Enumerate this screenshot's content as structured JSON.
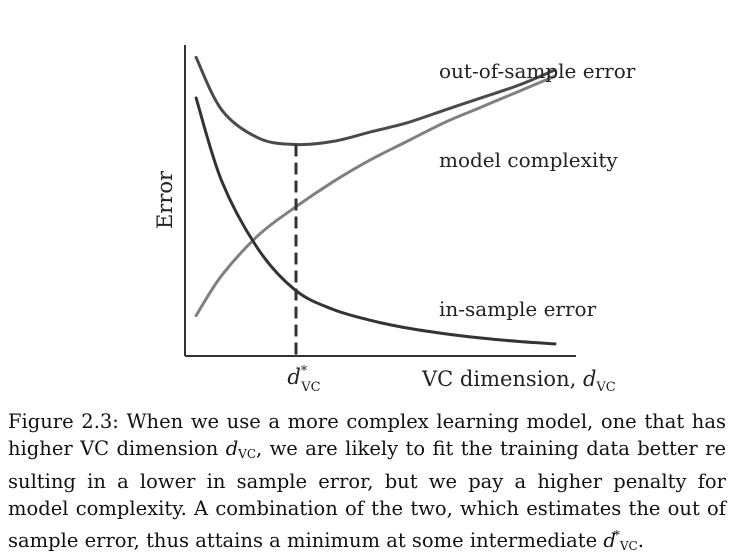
{
  "chart_data": {
    "type": "line",
    "xlabel_text": "VC dimension, ",
    "xlabel_var": "d",
    "xlabel_sub": "VC",
    "ylabel": "Error",
    "xlim": [
      0,
      10
    ],
    "ylim": [
      0,
      10
    ],
    "grid": false,
    "legend": "none",
    "marker": {
      "label_var": "d",
      "label_sup": "*",
      "label_sub": "VC",
      "x": 3
    },
    "series": [
      {
        "name": "out-of-sample error",
        "color": "#4a4a4a",
        "x": [
          0.3,
          1,
          2,
          3,
          4,
          5,
          6,
          7,
          8,
          9,
          10
        ],
        "y": [
          9.6,
          7.9,
          7.0,
          6.8,
          6.9,
          7.2,
          7.5,
          7.9,
          8.3,
          8.7,
          9.2
        ]
      },
      {
        "name": "model complexity",
        "color": "#808080",
        "x": [
          0.3,
          1,
          2,
          3,
          4,
          5,
          6,
          7,
          8,
          9,
          10
        ],
        "y": [
          1.3,
          2.6,
          3.9,
          4.8,
          5.6,
          6.3,
          6.9,
          7.5,
          8.0,
          8.5,
          9.0
        ]
      },
      {
        "name": "in-sample error",
        "color": "#333333",
        "x": [
          0.3,
          1,
          2,
          3,
          4,
          5,
          6,
          7,
          8,
          9,
          10
        ],
        "y": [
          8.3,
          5.6,
          3.4,
          2.1,
          1.5,
          1.15,
          0.9,
          0.72,
          0.58,
          0.47,
          0.39
        ]
      }
    ]
  },
  "caption": {
    "p1": "Figure 2.3: When we use a more complex learning model, one that has higher VC dimension ",
    "var1": "d",
    "sub1": "VC",
    "p2": ", we are likely to fit the training data better re sulting in a lower in sample error, but we pay a higher penalty for model complexity. A combination of the two, which estimates the out of sample error, thus attains a minimum at some intermediate ",
    "var2": "d",
    "sup2": "*",
    "sub2": "VC",
    "p3": "."
  }
}
